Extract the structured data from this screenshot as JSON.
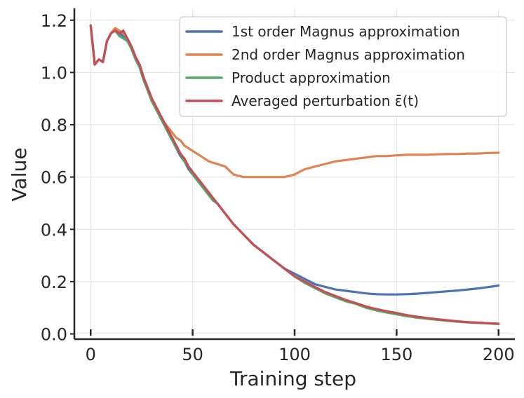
{
  "chart_data": {
    "type": "line",
    "title": "",
    "xlabel": "Training step",
    "ylabel": "Value",
    "xlim": [
      -8,
      208
    ],
    "ylim": [
      -0.02,
      1.245
    ],
    "xticks": [
      0,
      50,
      100,
      150,
      200
    ],
    "yticks": [
      0.0,
      0.2,
      0.4,
      0.6,
      0.8,
      1.0,
      1.2
    ],
    "xtick_labels": [
      "0",
      "50",
      "100",
      "150",
      "200"
    ],
    "ytick_labels": [
      "0.0",
      "0.2",
      "0.4",
      "0.6",
      "0.8",
      "1.0",
      "1.2"
    ],
    "grid": true,
    "legend_position": "top-right",
    "series": [
      {
        "name": "1st order Magnus approximation",
        "color": "#4c72b0",
        "x": [
          0,
          2,
          4,
          6,
          8,
          10,
          12,
          14,
          16,
          18,
          20,
          22,
          24,
          26,
          28,
          30,
          32,
          34,
          36,
          38,
          40,
          42,
          44,
          46,
          48,
          50,
          52,
          54,
          56,
          58,
          60,
          62,
          64,
          66,
          68,
          70,
          75,
          80,
          85,
          90,
          95,
          100,
          105,
          110,
          115,
          120,
          125,
          130,
          135,
          140,
          145,
          150,
          155,
          160,
          165,
          170,
          175,
          180,
          185,
          190,
          195,
          200
        ],
        "y": [
          1.18,
          1.03,
          1.05,
          1.04,
          1.12,
          1.15,
          1.16,
          1.15,
          1.14,
          1.13,
          1.09,
          1.05,
          1.02,
          0.97,
          0.93,
          0.89,
          0.86,
          0.83,
          0.8,
          0.77,
          0.74,
          0.71,
          0.68,
          0.66,
          0.63,
          0.61,
          0.59,
          0.57,
          0.55,
          0.53,
          0.51,
          0.5,
          0.48,
          0.46,
          0.44,
          0.42,
          0.38,
          0.34,
          0.31,
          0.28,
          0.25,
          0.23,
          0.21,
          0.19,
          0.18,
          0.17,
          0.165,
          0.16,
          0.155,
          0.152,
          0.151,
          0.151,
          0.152,
          0.154,
          0.157,
          0.16,
          0.163,
          0.166,
          0.17,
          0.174,
          0.179,
          0.185
        ]
      },
      {
        "name": "2nd order Magnus approximation",
        "color": "#dd8452",
        "x": [
          0,
          2,
          4,
          6,
          8,
          10,
          12,
          14,
          16,
          18,
          20,
          22,
          24,
          26,
          28,
          30,
          32,
          34,
          36,
          38,
          40,
          42,
          44,
          46,
          48,
          50,
          54,
          58,
          62,
          66,
          70,
          75,
          80,
          85,
          90,
          95,
          100,
          105,
          110,
          115,
          120,
          125,
          130,
          135,
          140,
          145,
          150,
          155,
          160,
          165,
          170,
          175,
          180,
          185,
          190,
          195,
          200
        ],
        "y": [
          1.18,
          1.03,
          1.05,
          1.04,
          1.12,
          1.15,
          1.17,
          1.16,
          1.15,
          1.13,
          1.1,
          1.06,
          1.03,
          0.98,
          0.94,
          0.9,
          0.87,
          0.84,
          0.81,
          0.79,
          0.77,
          0.75,
          0.74,
          0.72,
          0.71,
          0.7,
          0.68,
          0.66,
          0.65,
          0.64,
          0.61,
          0.6,
          0.6,
          0.6,
          0.6,
          0.6,
          0.61,
          0.63,
          0.64,
          0.65,
          0.66,
          0.665,
          0.67,
          0.675,
          0.68,
          0.68,
          0.683,
          0.685,
          0.685,
          0.685,
          0.687,
          0.688,
          0.688,
          0.69,
          0.69,
          0.692,
          0.693
        ]
      },
      {
        "name": "Product approximation",
        "color": "#55a868",
        "x": [
          0,
          2,
          4,
          6,
          8,
          10,
          12,
          14,
          16,
          18,
          20,
          22,
          24,
          26,
          28,
          30,
          32,
          34,
          36,
          38,
          40,
          42,
          44,
          46,
          48,
          50,
          52,
          54,
          56,
          58,
          60,
          62,
          64,
          66,
          68,
          70,
          75,
          80,
          85,
          90,
          95,
          100,
          105,
          110,
          115,
          120,
          125,
          130,
          135,
          140,
          145,
          150,
          155,
          160,
          165,
          170,
          175,
          180,
          185,
          190,
          195,
          200
        ],
        "y": [
          1.18,
          1.03,
          1.05,
          1.04,
          1.12,
          1.15,
          1.16,
          1.14,
          1.13,
          1.12,
          1.09,
          1.05,
          1.02,
          0.97,
          0.93,
          0.89,
          0.86,
          0.83,
          0.8,
          0.77,
          0.74,
          0.71,
          0.69,
          0.66,
          0.64,
          0.61,
          0.59,
          0.57,
          0.55,
          0.53,
          0.51,
          0.5,
          0.48,
          0.46,
          0.44,
          0.42,
          0.38,
          0.34,
          0.31,
          0.28,
          0.25,
          0.22,
          0.195,
          0.175,
          0.155,
          0.14,
          0.125,
          0.115,
          0.1,
          0.09,
          0.082,
          0.075,
          0.068,
          0.062,
          0.058,
          0.054,
          0.05,
          0.047,
          0.044,
          0.042,
          0.04,
          0.038
        ]
      },
      {
        "name": "Averaged perturbation ε̄(t)",
        "color": "#c44e52",
        "x": [
          0,
          2,
          4,
          6,
          8,
          10,
          12,
          14,
          16,
          18,
          20,
          22,
          24,
          26,
          28,
          30,
          32,
          34,
          36,
          38,
          40,
          42,
          44,
          46,
          48,
          50,
          52,
          54,
          56,
          58,
          60,
          62,
          64,
          66,
          68,
          70,
          75,
          80,
          85,
          90,
          95,
          100,
          105,
          110,
          115,
          120,
          125,
          130,
          135,
          140,
          145,
          150,
          155,
          160,
          165,
          170,
          175,
          180,
          185,
          190,
          195,
          200
        ],
        "y": [
          1.18,
          1.03,
          1.05,
          1.04,
          1.12,
          1.15,
          1.16,
          1.15,
          1.16,
          1.13,
          1.1,
          1.06,
          1.03,
          0.98,
          0.94,
          0.9,
          0.87,
          0.84,
          0.81,
          0.78,
          0.75,
          0.72,
          0.69,
          0.67,
          0.64,
          0.62,
          0.6,
          0.58,
          0.56,
          0.54,
          0.52,
          0.5,
          0.48,
          0.46,
          0.44,
          0.42,
          0.38,
          0.34,
          0.31,
          0.28,
          0.25,
          0.22,
          0.2,
          0.18,
          0.16,
          0.145,
          0.13,
          0.118,
          0.105,
          0.095,
          0.087,
          0.08,
          0.072,
          0.066,
          0.061,
          0.056,
          0.052,
          0.048,
          0.045,
          0.043,
          0.041,
          0.039
        ]
      }
    ]
  }
}
